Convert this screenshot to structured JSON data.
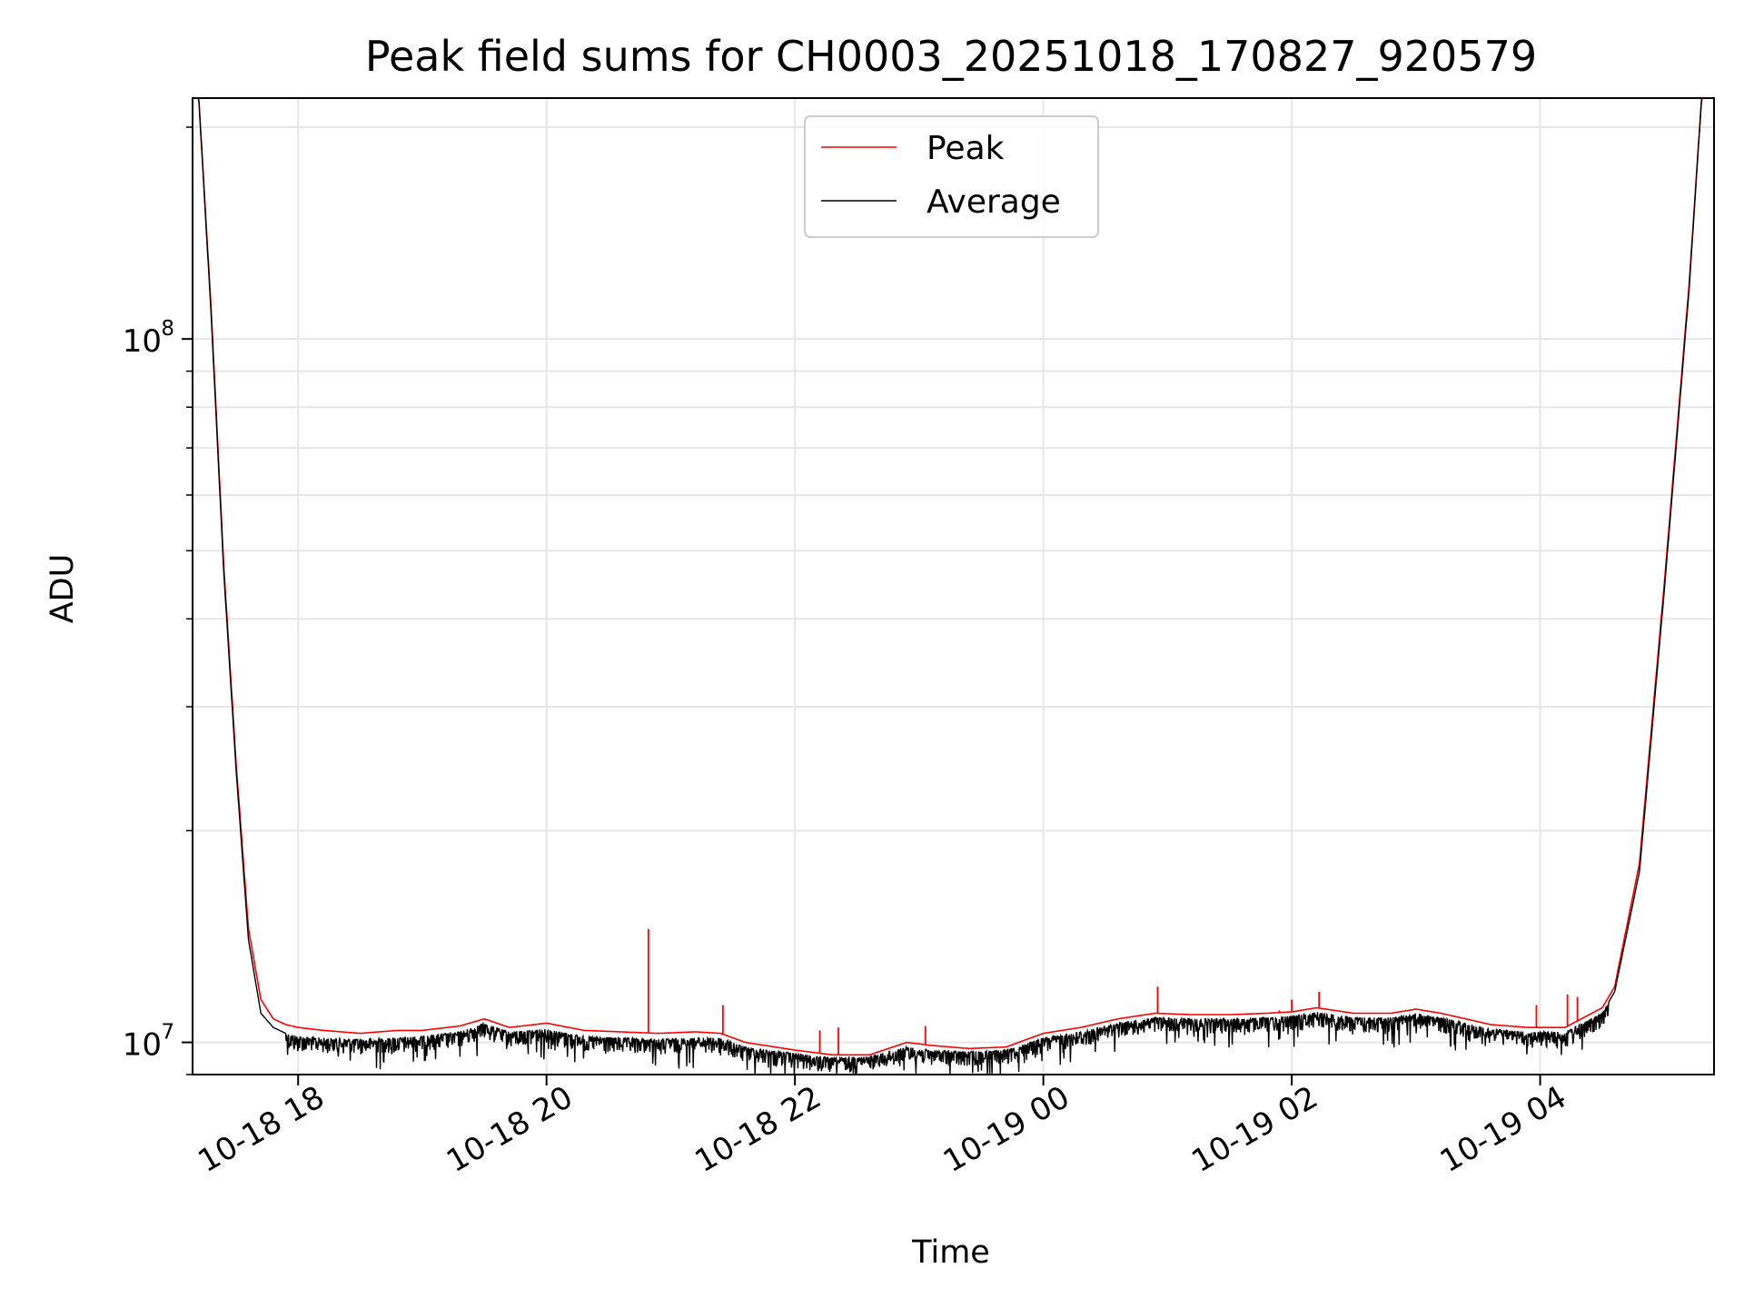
{
  "chart_data": {
    "type": "line",
    "title": "Peak field sums for CH0003_20251018_170827_920579",
    "xlabel": "Time",
    "ylabel": "ADU",
    "y_scale": "log",
    "xlim": [
      17.15,
      29.4
    ],
    "ylim": [
      9000000,
      220000000
    ],
    "grid": true,
    "legend_position": "top-center",
    "x_ticks": [
      {
        "x": 18,
        "label": "10-18 18"
      },
      {
        "x": 20,
        "label": "10-18 20"
      },
      {
        "x": 22,
        "label": "10-18 22"
      },
      {
        "x": 24,
        "label": "10-19 00"
      },
      {
        "x": 26,
        "label": "10-19 02"
      },
      {
        "x": 28,
        "label": "10-19 04"
      }
    ],
    "y_ticks": [
      {
        "value": 10000000,
        "base": "10",
        "exp": "7"
      },
      {
        "value": 100000000,
        "base": "10",
        "exp": "8"
      }
    ],
    "series": [
      {
        "name": "Peak",
        "color": "#ff0000",
        "x": [
          17.15,
          17.2,
          17.3,
          17.4,
          17.5,
          17.6,
          17.7,
          17.8,
          17.9,
          18.0,
          18.2,
          18.5,
          18.8,
          19.0,
          19.3,
          19.5,
          19.7,
          20.0,
          20.3,
          20.6,
          20.9,
          21.2,
          21.4,
          21.6,
          22.0,
          22.3,
          22.6,
          22.9,
          23.1,
          23.4,
          23.7,
          24.0,
          24.3,
          24.6,
          24.9,
          25.2,
          25.5,
          25.8,
          26.0,
          26.2,
          26.5,
          26.8,
          27.0,
          27.2,
          27.4,
          27.6,
          27.9,
          28.2,
          28.5,
          28.6,
          28.8,
          29.0,
          29.2,
          29.3,
          29.4
        ],
        "y": [
          220000000,
          220000000,
          110000000,
          48000000,
          25000000,
          14500000,
          11500000,
          10800000,
          10600000,
          10500000,
          10400000,
          10300000,
          10400000,
          10400000,
          10550000,
          10800000,
          10500000,
          10650000,
          10400000,
          10350000,
          10300000,
          10350000,
          10300000,
          10000000,
          9750000,
          9600000,
          9600000,
          10000000,
          9900000,
          9800000,
          9850000,
          10300000,
          10500000,
          10800000,
          11000000,
          10950000,
          10950000,
          11000000,
          11050000,
          11200000,
          11000000,
          11000000,
          11150000,
          11000000,
          10800000,
          10600000,
          10500000,
          10500000,
          11200000,
          12000000,
          18000000,
          45000000,
          120000000,
          220000000,
          220000000
        ],
        "spikes": [
          {
            "x": 20.82,
            "y": 14500000
          },
          {
            "x": 21.42,
            "y": 11300000
          },
          {
            "x": 22.2,
            "y": 10400000
          },
          {
            "x": 22.35,
            "y": 10500000
          },
          {
            "x": 23.05,
            "y": 10550000
          },
          {
            "x": 24.92,
            "y": 12000000
          },
          {
            "x": 25.9,
            "y": 11100000
          },
          {
            "x": 26.0,
            "y": 11500000
          },
          {
            "x": 26.22,
            "y": 11800000
          },
          {
            "x": 27.97,
            "y": 11300000
          },
          {
            "x": 28.22,
            "y": 11700000
          },
          {
            "x": 28.3,
            "y": 11600000
          }
        ]
      },
      {
        "name": "Average",
        "color": "#000000",
        "x": [
          17.15,
          17.2,
          17.3,
          17.4,
          17.5,
          17.6,
          17.7,
          17.8,
          17.9,
          18.0,
          18.2,
          18.5,
          18.8,
          19.0,
          19.3,
          19.5,
          19.7,
          20.0,
          20.3,
          20.6,
          20.9,
          21.2,
          21.4,
          21.6,
          22.0,
          22.3,
          22.6,
          22.9,
          23.1,
          23.4,
          23.7,
          24.0,
          24.3,
          24.6,
          24.9,
          25.2,
          25.5,
          25.8,
          26.0,
          26.2,
          26.5,
          26.8,
          27.0,
          27.2,
          27.4,
          27.6,
          27.9,
          28.2,
          28.5,
          28.6,
          28.8,
          29.0,
          29.2,
          29.3,
          29.4
        ],
        "y": [
          220000000,
          220000000,
          108000000,
          47000000,
          24500000,
          14000000,
          11000000,
          10500000,
          10300000,
          10200000,
          10150000,
          10100000,
          10150000,
          10200000,
          10350000,
          10650000,
          10350000,
          10450000,
          10200000,
          10150000,
          10100000,
          10150000,
          10150000,
          9850000,
          9650000,
          9500000,
          9550000,
          9850000,
          9750000,
          9700000,
          9750000,
          10150000,
          10350000,
          10650000,
          10850000,
          10800000,
          10800000,
          10850000,
          10900000,
          11050000,
          10850000,
          10850000,
          11000000,
          10850000,
          10650000,
          10450000,
          10350000,
          10350000,
          11000000,
          11800000,
          17500000,
          44000000,
          118000000,
          220000000,
          220000000
        ],
        "noise_amplitude": 0.035
      }
    ]
  }
}
